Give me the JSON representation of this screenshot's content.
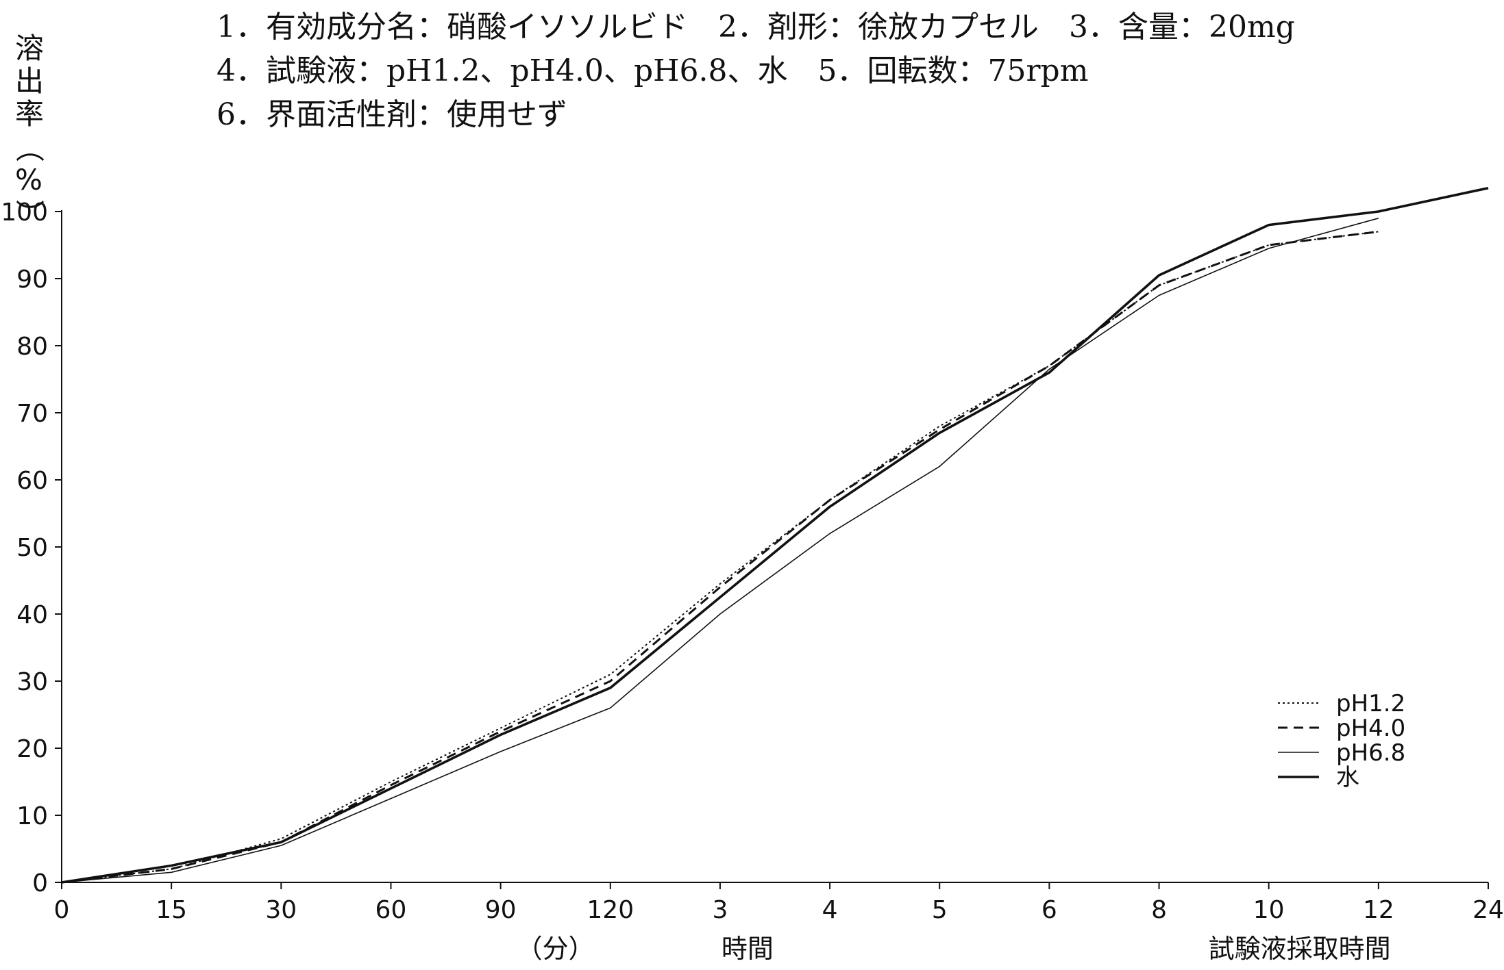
{
  "header": {
    "lines": [
      "1．有効成分名：硝酸イソソルビド　2．剤形：徐放カプセル　3．含量：20mg",
      "4．試験液：pH1.2、pH4.0、pH6.8、水　5．回転数：75rpm",
      "6．界面活性剤：使用せず"
    ]
  },
  "chart_data": {
    "type": "line",
    "title": "",
    "ylabel": "溶出率（%）",
    "ylim": [
      0,
      100
    ],
    "yticks": [
      0,
      10,
      20,
      30,
      40,
      50,
      60,
      70,
      80,
      90,
      100
    ],
    "x_positions": [
      "0",
      "15",
      "30",
      "60",
      "90",
      "120",
      "3",
      "4",
      "5",
      "6",
      "8",
      "10",
      "12",
      "24"
    ],
    "x_group_labels": {
      "minutes": "（分）",
      "hours": "時間",
      "sampling": "試験液採取時間"
    },
    "grid": false,
    "legend_position": "bottom-right",
    "series": [
      {
        "name": "pH1.2",
        "style": "dotted",
        "values": [
          0,
          2.0,
          6.5,
          15.0,
          23.0,
          31.0,
          44.5,
          57.0,
          68.0,
          77.0,
          89.0,
          95.0,
          97.0,
          null
        ]
      },
      {
        "name": "pH4.0",
        "style": "dashed",
        "values": [
          0,
          2.0,
          6.0,
          14.5,
          22.5,
          30.0,
          44.0,
          57.0,
          67.5,
          77.0,
          89.0,
          95.0,
          97.0,
          null
        ]
      },
      {
        "name": "pH6.8",
        "style": "thin",
        "values": [
          0,
          1.5,
          5.5,
          12.5,
          19.5,
          26.0,
          40.0,
          52.0,
          62.0,
          76.5,
          87.5,
          94.5,
          99.0,
          null
        ]
      },
      {
        "name": "水",
        "style": "thick",
        "values": [
          0,
          2.5,
          6.0,
          14.0,
          22.0,
          29.0,
          42.5,
          56.0,
          67.0,
          76.0,
          90.5,
          98.0,
          100.0,
          103.5
        ]
      }
    ]
  }
}
